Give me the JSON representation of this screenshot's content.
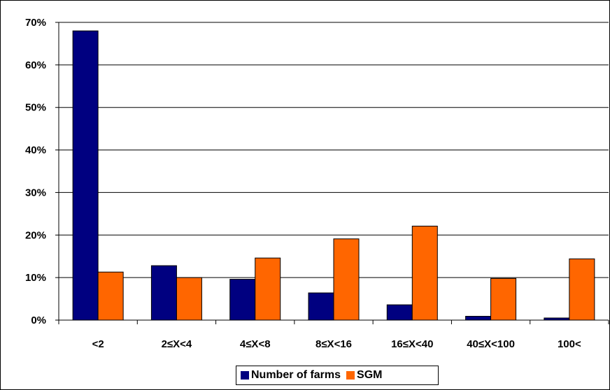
{
  "chart_data": {
    "type": "bar",
    "categories": [
      "<2",
      "2≤X<4",
      "4≤X<8",
      "8≤X<16",
      "16≤X<40",
      "40≤X<100",
      "100<"
    ],
    "series": [
      {
        "name": "Number of farms",
        "color": "#000080",
        "values": [
          68.0,
          12.8,
          9.6,
          6.4,
          3.6,
          0.9,
          0.5
        ]
      },
      {
        "name": "SGM",
        "color": "#FF6600",
        "values": [
          11.3,
          10.0,
          14.6,
          19.1,
          22.1,
          9.8,
          14.4
        ]
      }
    ],
    "y_ticks": [
      "0%",
      "10%",
      "20%",
      "30%",
      "40%",
      "50%",
      "60%",
      "70%"
    ],
    "ylim": [
      0,
      70
    ],
    "title": "",
    "xlabel": "",
    "ylabel": "",
    "grid": true,
    "legend_position": "bottom"
  }
}
